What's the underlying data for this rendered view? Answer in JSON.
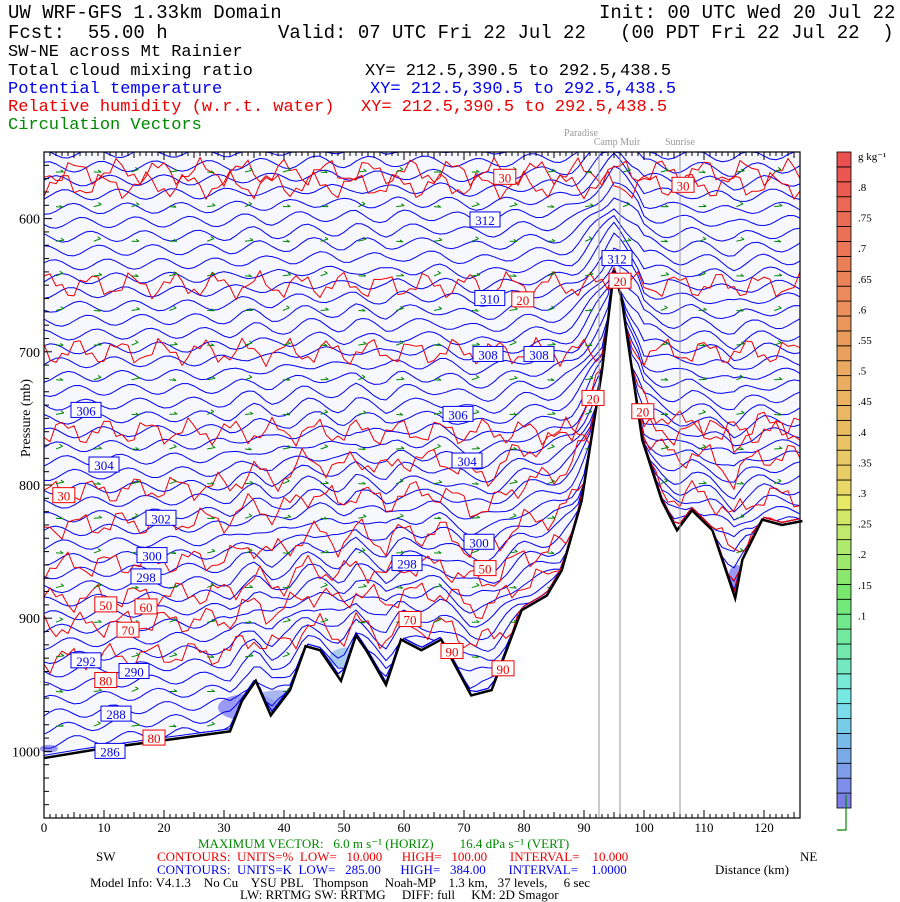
{
  "header": {
    "title": "UW WRF-GFS 1.33km Domain",
    "init": "Init: 00 UTC Wed 20 Jul 22",
    "fcst": "Fcst:  55.00 h",
    "valid": "Valid: 07 UTC Fri 22 Jul 22   (00 PDT Fri 22 Jul 22  )",
    "section": "SW-NE across Mt Rainier",
    "fields": [
      {
        "label": "Total cloud mixing ratio",
        "xy": "XY= 212.5,390.5 to 292.5,438.5",
        "color": "#000000"
      },
      {
        "label": "Potential temperature",
        "xy": "XY= 212.5,390.5 to 292.5,438.5",
        "color": "#0000ee"
      },
      {
        "label": "Relative humidity (w.r.t. water)",
        "xy": "XY= 212.5,390.5 to 292.5,438.5",
        "color": "#ee0000"
      },
      {
        "label": "Circulation Vectors",
        "xy": "",
        "color": "#008800"
      }
    ]
  },
  "locations": [
    "Paradise",
    "Camp Muir",
    "Sunrise"
  ],
  "footer": {
    "sw": "SW",
    "ne": "NE",
    "max_vector": "MAXIMUM VECTOR:   6.0 m s⁻¹ (HORIZ)        16.4 dPa s⁻¹ (VERT)",
    "rh_contours": "CONTOURS:  UNITS=%  LOW=   10.000      HIGH=   100.00       INTERVAL=    10.000",
    "theta_contours": "CONTOURS:  UNITS=K  LOW=   285.00      HIGH=   384.00       INTERVAL=    1.0000",
    "model_info": "Model Info: V4.1.3    No Cu    YSU PBL   Thompson     Noah-MP    1.3 km,   37 levels,     6 sec",
    "model_info2": "LW: RRTMG SW: RRTMG     DIFF: full     KM: 2D Smagor"
  },
  "chart_data": {
    "type": "cross-section",
    "xlabel": "Distance (km)",
    "ylabel": "Pressure (mb)",
    "xlim": [
      0,
      126
    ],
    "ylim": [
      1050,
      550
    ],
    "xticks": [
      0,
      10,
      20,
      30,
      40,
      50,
      60,
      70,
      80,
      90,
      100,
      110,
      120
    ],
    "yticks": [
      600,
      700,
      800,
      900,
      1000
    ],
    "ytick_labels": [
      "600",
      "700",
      "800",
      "900",
      "1000"
    ],
    "location_markers_km": [
      92.5,
      96,
      106
    ],
    "terrain": [
      [
        0,
        1005
      ],
      [
        9.4,
        998
      ],
      [
        22.7,
        990
      ],
      [
        31,
        985
      ],
      [
        33,
        962
      ],
      [
        35.3,
        947
      ],
      [
        37.8,
        973
      ],
      [
        41,
        954
      ],
      [
        43.6,
        921
      ],
      [
        46,
        924
      ],
      [
        49.5,
        947
      ],
      [
        52,
        913
      ],
      [
        53.7,
        924
      ],
      [
        57,
        950
      ],
      [
        59.5,
        916
      ],
      [
        62.9,
        924
      ],
      [
        66.2,
        916
      ],
      [
        71.2,
        958
      ],
      [
        74.6,
        954
      ],
      [
        79.6,
        894
      ],
      [
        83.8,
        883
      ],
      [
        86.3,
        864
      ],
      [
        89.6,
        812
      ],
      [
        93,
        714
      ],
      [
        95,
        639
      ],
      [
        96.3,
        661
      ],
      [
        99.7,
        766
      ],
      [
        103,
        812
      ],
      [
        105.5,
        834
      ],
      [
        108,
        819
      ],
      [
        111.4,
        834
      ],
      [
        115.2,
        885
      ],
      [
        116.4,
        856
      ],
      [
        119.7,
        826
      ],
      [
        123,
        830
      ],
      [
        126.4,
        827
      ]
    ],
    "theta_labels": [
      {
        "v": "312",
        "x": 73.5,
        "p": 601
      },
      {
        "v": "312",
        "x": 95.5,
        "p": 630
      },
      {
        "v": "310",
        "x": 74.3,
        "p": 660
      },
      {
        "v": "308",
        "x": 74,
        "p": 702
      },
      {
        "v": "308",
        "x": 82.5,
        "p": 702
      },
      {
        "v": "306",
        "x": 7,
        "p": 744
      },
      {
        "v": "306",
        "x": 69,
        "p": 747
      },
      {
        "v": "304",
        "x": 10,
        "p": 785
      },
      {
        "v": "304",
        "x": 70.5,
        "p": 782
      },
      {
        "v": "302",
        "x": 19.5,
        "p": 825
      },
      {
        "v": "300",
        "x": 18,
        "p": 853
      },
      {
        "v": "300",
        "x": 72.5,
        "p": 843
      },
      {
        "v": "298",
        "x": 60.5,
        "p": 859
      },
      {
        "v": "298",
        "x": 17,
        "p": 869
      },
      {
        "v": "292",
        "x": 7,
        "p": 932
      },
      {
        "v": "290",
        "x": 15,
        "p": 940
      },
      {
        "v": "288",
        "x": 12,
        "p": 972
      },
      {
        "v": "286",
        "x": 11,
        "p": 1000
      }
    ],
    "rh_labels": [
      {
        "v": "30",
        "x": 76.8,
        "p": 569
      },
      {
        "v": "30",
        "x": 106.5,
        "p": 575
      },
      {
        "v": "30",
        "x": 3.3,
        "p": 808
      },
      {
        "v": "20",
        "x": 79.8,
        "p": 661
      },
      {
        "v": "20",
        "x": 96,
        "p": 647
      },
      {
        "v": "20",
        "x": 91.5,
        "p": 735
      },
      {
        "v": "20",
        "x": 99.8,
        "p": 745
      },
      {
        "v": "50",
        "x": 73.5,
        "p": 850
      },
      {
        "v": "50",
        "x": 10.3,
        "p": 890
      },
      {
        "v": "60",
        "x": 17,
        "p": 866
      },
      {
        "v": "70",
        "x": 14,
        "p": 909
      },
      {
        "v": "70",
        "x": 61,
        "p": 901
      },
      {
        "v": "80",
        "x": 10.3,
        "p": 934
      },
      {
        "v": "80",
        "x": 14,
        "p": 990
      },
      {
        "v": "90",
        "x": 68,
        "p": 925
      },
      {
        "v": "90",
        "x": 76.5,
        "p": 938
      }
    ],
    "cloud_colorbar": {
      "units": "g kg⁻¹",
      "labels": [
        ".8",
        ".75",
        ".7",
        ".65",
        ".6",
        ".55",
        ".5",
        ".45",
        ".4",
        ".35",
        ".3",
        ".25",
        ".2",
        ".15",
        ".1"
      ],
      "range": [
        0.05,
        0.9
      ]
    }
  }
}
